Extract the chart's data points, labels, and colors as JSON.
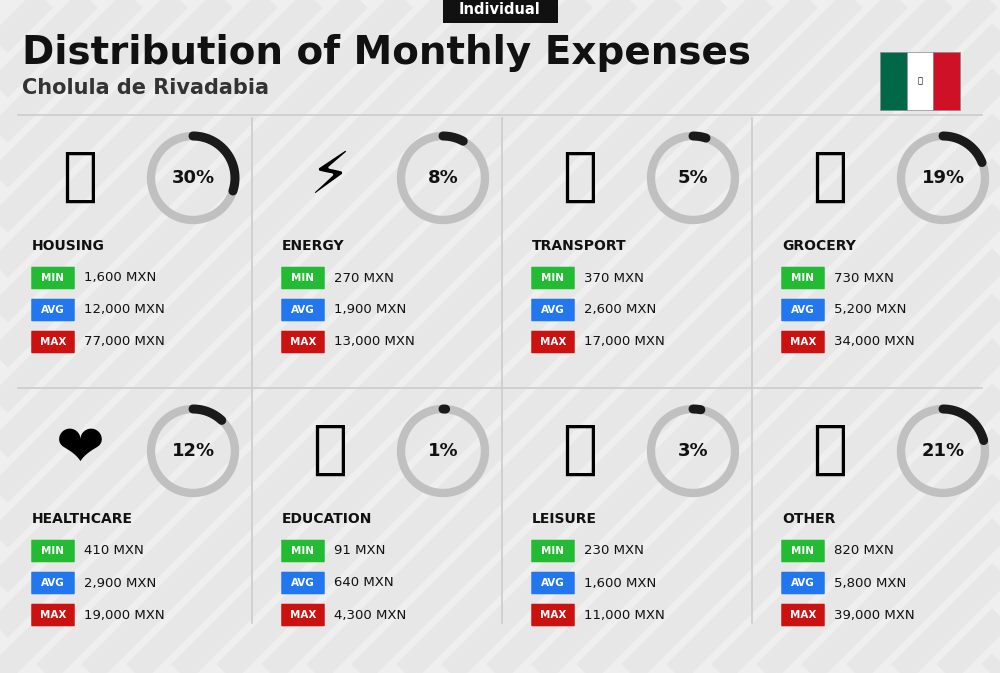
{
  "title": "Distribution of Monthly Expenses",
  "subtitle": "Cholula de Rivadabia",
  "tag": "Individual",
  "bg_color": "#efefef",
  "categories": [
    {
      "name": "HOUSING",
      "pct": 30,
      "icon": "🏙",
      "min_val": "1,600 MXN",
      "avg_val": "12,000 MXN",
      "max_val": "77,000 MXN",
      "row": 0,
      "col": 0
    },
    {
      "name": "ENERGY",
      "pct": 8,
      "icon": "⚡",
      "min_val": "270 MXN",
      "avg_val": "1,900 MXN",
      "max_val": "13,000 MXN",
      "row": 0,
      "col": 1
    },
    {
      "name": "TRANSPORT",
      "pct": 5,
      "icon": "🚌",
      "min_val": "370 MXN",
      "avg_val": "2,600 MXN",
      "max_val": "17,000 MXN",
      "row": 0,
      "col": 2
    },
    {
      "name": "GROCERY",
      "pct": 19,
      "icon": "🛒",
      "min_val": "730 MXN",
      "avg_val": "5,200 MXN",
      "max_val": "34,000 MXN",
      "row": 0,
      "col": 3
    },
    {
      "name": "HEALTHCARE",
      "pct": 12,
      "icon": "❤️",
      "min_val": "410 MXN",
      "avg_val": "2,900 MXN",
      "max_val": "19,000 MXN",
      "row": 1,
      "col": 0
    },
    {
      "name": "EDUCATION",
      "pct": 1,
      "icon": "🎓",
      "min_val": "91 MXN",
      "avg_val": "640 MXN",
      "max_val": "4,300 MXN",
      "row": 1,
      "col": 1
    },
    {
      "name": "LEISURE",
      "pct": 3,
      "icon": "🛍",
      "min_val": "230 MXN",
      "avg_val": "1,600 MXN",
      "max_val": "11,000 MXN",
      "row": 1,
      "col": 2
    },
    {
      "name": "OTHER",
      "pct": 21,
      "icon": "👜",
      "min_val": "820 MXN",
      "avg_val": "5,800 MXN",
      "max_val": "39,000 MXN",
      "row": 1,
      "col": 3
    }
  ],
  "min_color": "#22bb33",
  "avg_color": "#2277ee",
  "max_color": "#cc1111",
  "pie_dark": "#1a1a1a",
  "pie_light": "#c0c0c0",
  "flag_green": "#006847",
  "flag_white": "#ffffff",
  "flag_red": "#ce1126",
  "stripe_color": "#e3e3e3"
}
